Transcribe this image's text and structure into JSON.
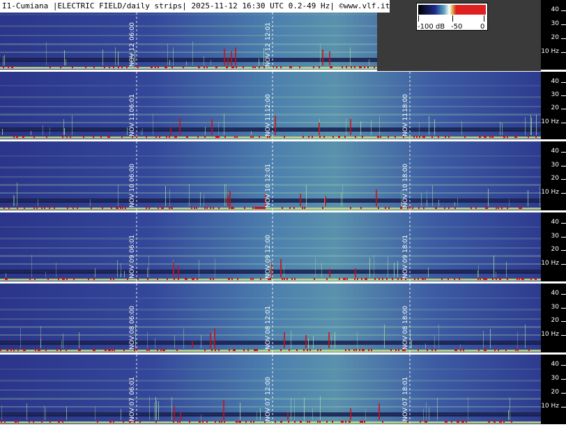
{
  "header": {
    "title": "I1-Cumiana |ELECTRIC FIELD/daily strips| 2025-11-12 16:30 UTC 0.2-49 Hz| ©www.vlf.it"
  },
  "legend": {
    "min_label": "-100 dB",
    "mid_label": "-50",
    "max_label": "0"
  },
  "y_axis_ticks": [
    "40",
    "30",
    "20",
    "10 Hz"
  ],
  "strips": [
    {
      "date_label": "NOV 12",
      "marks": [
        {
          "time": "06:00"
        },
        {
          "time": "12:01"
        }
      ]
    },
    {
      "date_label": "NOV 11",
      "marks": [
        {
          "time": "06:01"
        },
        {
          "time": "12:00"
        },
        {
          "time": "18:00"
        }
      ]
    },
    {
      "date_label": "NOV 10",
      "marks": [
        {
          "time": "06:00"
        },
        {
          "time": "12:01"
        },
        {
          "time": "18:00"
        }
      ]
    },
    {
      "date_label": "NOV 09",
      "marks": [
        {
          "time": "06:01"
        },
        {
          "time": "12:00"
        },
        {
          "time": "18:01"
        }
      ]
    },
    {
      "date_label": "NOV 08",
      "marks": [
        {
          "time": "06:00"
        },
        {
          "time": "12:01"
        },
        {
          "time": "18:00"
        }
      ]
    },
    {
      "date_label": "NOV 07",
      "marks": [
        {
          "time": "06:01"
        },
        {
          "time": "12:00"
        },
        {
          "time": "18:01"
        }
      ]
    }
  ],
  "colors": {
    "spectrogram_base": "#2e3a8f",
    "spectrogram_mid": "#4f7bb0",
    "spectrogram_green": "#7fc39a",
    "signal_red": "#d01010",
    "background": "#000000"
  }
}
